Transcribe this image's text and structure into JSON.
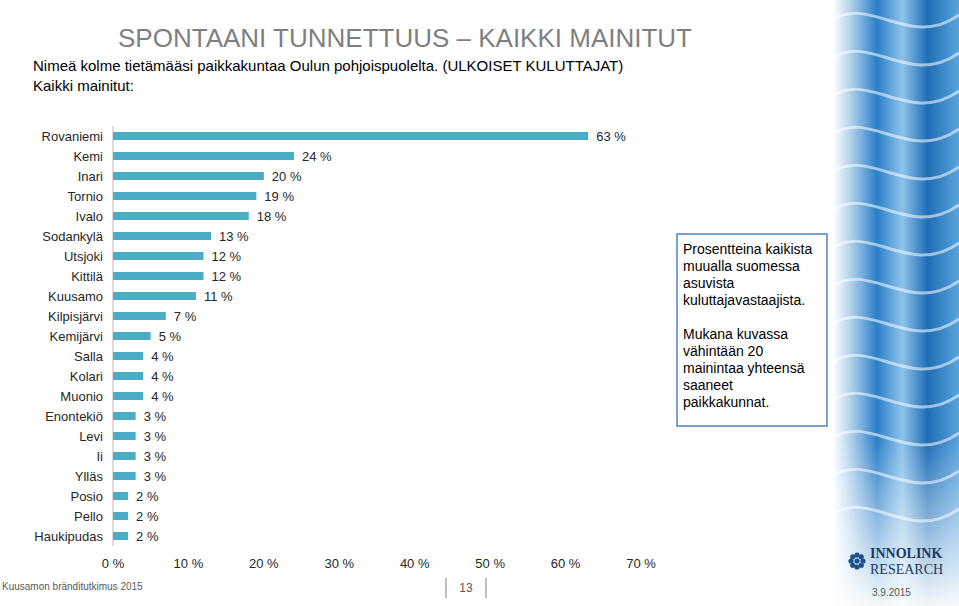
{
  "chart_data": {
    "type": "bar",
    "orientation": "horizontal",
    "title": "SPONTAANI TUNNETTUUS – KAIKKI MAINITUT",
    "subtitle": "Nimeä kolme tietämääsi paikkakuntaa Oulun pohjoispuolelta. (ULKOISET KULUTTAJAT)",
    "annotations": [
      "Kaikki mainitut:",
      "Prosentteina kaikista muualla suomessa asuvista kuluttajavastaajista.",
      "Mukana kuvassa vähintään 20 mainintaa yhteensä saaneet paikkakunnat.",
      "Kuusamon brändi­tutkimus 2015",
      "13",
      "3.9.2015",
      "INNOLINK",
      "RESEARCH"
    ],
    "categories": [
      "Rovaniemi",
      "Kemi",
      "Inari",
      "Tornio",
      "Ivalo",
      "Sodankylä",
      "Utsjoki",
      "Kittilä",
      "Kuusamo",
      "Kilpisjärvi",
      "Kemijärvi",
      "Salla",
      "Kolari",
      "Muonio",
      "Enontekiö",
      "Levi",
      "Ii",
      "Ylläs",
      "Posio",
      "Pello",
      "Haukipudas"
    ],
    "values": [
      63,
      24,
      20,
      19,
      18,
      13,
      12,
      12,
      11,
      7,
      5,
      4,
      4,
      4,
      3,
      3,
      3,
      3,
      2,
      2,
      2
    ],
    "value_labels": [
      "63 %",
      "24 %",
      "20 %",
      "19 %",
      "18 %",
      "13 %",
      "12 %",
      "12 %",
      "11 %",
      "7 %",
      "5 %",
      "4 %",
      "4 %",
      "4 %",
      "3 %",
      "3 %",
      "3 %",
      "3 %",
      "2 %",
      "2 %",
      "2 %"
    ],
    "color": "#4bacc6",
    "data_labels": true,
    "grid": false,
    "xlim": [
      0,
      70
    ],
    "xticks": [
      {
        "value": 0,
        "label": "0 %"
      },
      {
        "value": 10,
        "label": "10 %"
      },
      {
        "value": 20,
        "label": "20 %"
      },
      {
        "value": 30,
        "label": "30 %"
      },
      {
        "value": 40,
        "label": "40 %"
      },
      {
        "value": 50,
        "label": "50 %"
      },
      {
        "value": 60,
        "label": "60 %"
      },
      {
        "value": 70,
        "label": "70 %"
      }
    ]
  }
}
